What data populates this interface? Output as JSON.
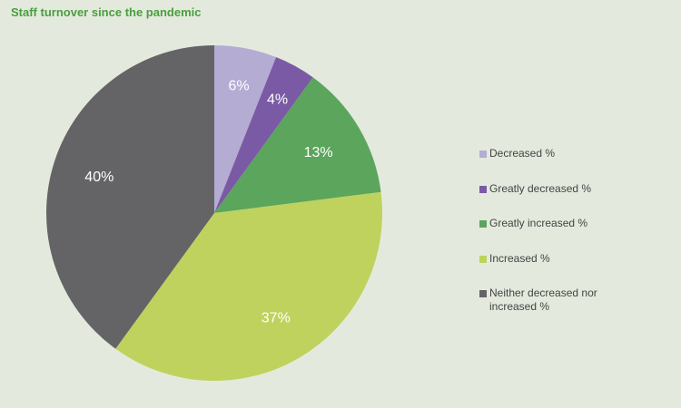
{
  "chart_data": {
    "type": "pie",
    "title": "Staff turnover since the pandemic",
    "slices": [
      {
        "label": "Decreased %",
        "value": 6,
        "value_label": "6%",
        "color": "#b4acd3"
      },
      {
        "label": "Greatly decreased %",
        "value": 4,
        "value_label": "4%",
        "color": "#7a5aa5"
      },
      {
        "label": "Greatly increased %",
        "value": 13,
        "value_label": "13%",
        "color": "#5ba55c"
      },
      {
        "label": "Increased %",
        "value": 37,
        "value_label": "37%",
        "color": "#bfd25e"
      },
      {
        "label": "Neither decreased nor increased %",
        "value": 40,
        "value_label": "40%",
        "color": "#646466"
      }
    ],
    "start_angle": "12 o'clock",
    "direction": "clockwise",
    "legend_position": "right"
  }
}
